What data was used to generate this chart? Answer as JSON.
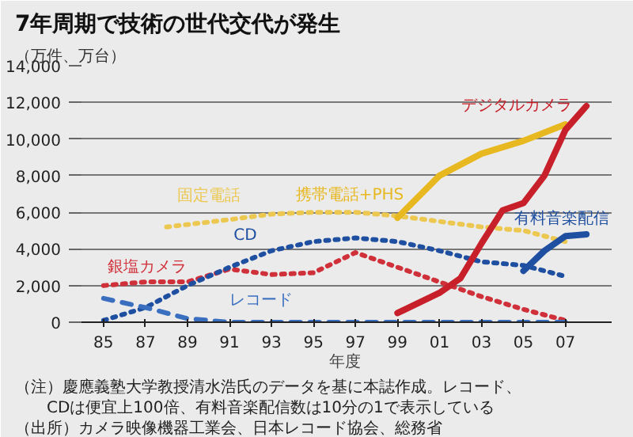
{
  "chart_data": {
    "type": "line",
    "title": "7年周期で技術の世代交代が発生",
    "ylabel": "（万件、万台）",
    "xlabel": "年度",
    "xlim": [
      1983.8,
      2009.2
    ],
    "ylim": [
      0,
      14000
    ],
    "xticks": [
      {
        "value": 1985,
        "label": "85"
      },
      {
        "value": 1987,
        "label": "87"
      },
      {
        "value": 1989,
        "label": "89"
      },
      {
        "value": 1991,
        "label": "91"
      },
      {
        "value": 1993,
        "label": "93"
      },
      {
        "value": 1995,
        "label": "95"
      },
      {
        "value": 1997,
        "label": "97"
      },
      {
        "value": 1999,
        "label": "99"
      },
      {
        "value": 2001,
        "label": "01"
      },
      {
        "value": 2003,
        "label": "03"
      },
      {
        "value": 2005,
        "label": "05"
      },
      {
        "value": 2007,
        "label": "07"
      }
    ],
    "yticks": [
      {
        "value": 0,
        "label": "0"
      },
      {
        "value": 2000,
        "label": "2,000"
      },
      {
        "value": 4000,
        "label": "4,000"
      },
      {
        "value": 6000,
        "label": "6,000"
      },
      {
        "value": 8000,
        "label": "8,000"
      },
      {
        "value": 10000,
        "label": "10,000"
      },
      {
        "value": 12000,
        "label": "12,000"
      },
      {
        "value": 14000,
        "label": "14,000"
      }
    ],
    "grid": "y",
    "series": [
      {
        "name": "銀塩カメラ",
        "color": "#d0303a",
        "line_style": "dotted",
        "x": [
          1985,
          1987,
          1989,
          1991,
          1993,
          1995,
          1997,
          1999,
          2001,
          2003,
          2005,
          2007
        ],
        "values": [
          2000,
          2200,
          2200,
          2900,
          2600,
          2700,
          3800,
          3000,
          2200,
          1400,
          700,
          100
        ]
      },
      {
        "name": "固定電話",
        "color": "#ecc850",
        "line_style": "dotted",
        "x": [
          1988,
          1991,
          1993,
          1995,
          1997,
          1999,
          2001,
          2003,
          2005,
          2007
        ],
        "values": [
          5200,
          5600,
          5900,
          6000,
          6000,
          5800,
          5500,
          5200,
          5000,
          4400
        ]
      },
      {
        "name": "CD",
        "color": "#1f4fa0",
        "line_style": "dotted",
        "x": [
          1985,
          1987,
          1989,
          1991,
          1993,
          1995,
          1997,
          1999,
          2001,
          2003,
          2005,
          2007
        ],
        "values": [
          100,
          800,
          2000,
          3000,
          3900,
          4400,
          4600,
          4400,
          3900,
          3300,
          3100,
          2500
        ]
      },
      {
        "name": "レコード",
        "color": "#3a6fc0",
        "line_style": "dashed",
        "x": [
          1985,
          1987,
          1989,
          1991,
          1993,
          1995,
          1997,
          1999,
          2001,
          2003,
          2005,
          2007
        ],
        "values": [
          1300,
          800,
          200,
          0,
          0,
          0,
          0,
          0,
          0,
          0,
          0,
          0
        ]
      },
      {
        "name": "携帯電話+PHS",
        "color": "#e8b820",
        "line_style": "solid",
        "x": [
          1999,
          2001,
          2003,
          2005,
          2007
        ],
        "values": [
          5700,
          8000,
          9200,
          9900,
          10800
        ]
      },
      {
        "name": "デジタルカメラ",
        "color": "#c8202a",
        "line_style": "solid",
        "x": [
          1999,
          2001,
          2002,
          2003,
          2004,
          2005,
          2006,
          2007,
          2008
        ],
        "values": [
          500,
          1600,
          2400,
          4300,
          6100,
          6500,
          8000,
          10500,
          11800
        ]
      },
      {
        "name": "有料音楽配信",
        "color": "#1f4fa0",
        "line_style": "solid",
        "x": [
          2005,
          2006,
          2007,
          2008
        ],
        "values": [
          2800,
          3900,
          4700,
          4800
        ]
      }
    ],
    "annotations": [
      "（注）慶應義塾大学教授清水浩氏のデータを基に本誌作成。レコード、",
      "　　CDは便宜上100倍、有料音楽配信数は10分の1で表示している",
      "（出所）カメラ映像機器工業会、日本レコード協会、総務省"
    ]
  }
}
